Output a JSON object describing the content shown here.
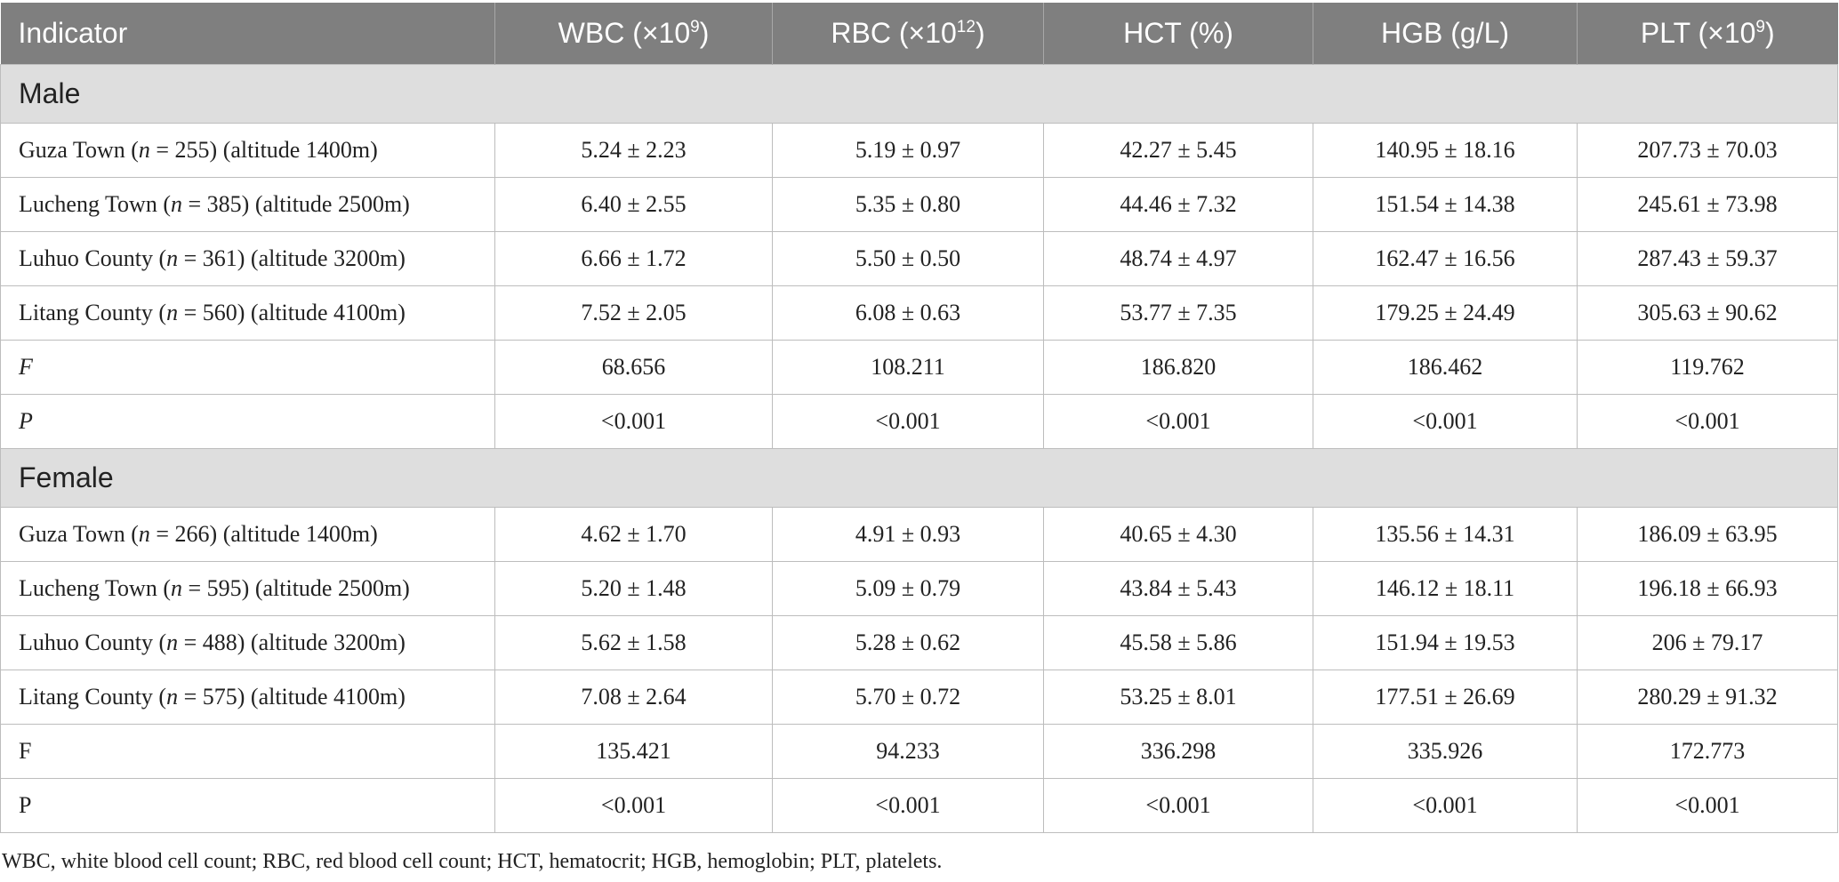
{
  "header": {
    "indicator": "Indicator",
    "wbc": {
      "text": "WBC (×10",
      "sup": "9",
      "close": ")"
    },
    "rbc": {
      "text": "RBC (×10",
      "sup": "12",
      "close": ")"
    },
    "hct": "HCT (%)",
    "hgb": "HGB (g/L)",
    "plt": {
      "text": "PLT (×10",
      "sup": "9",
      "close": ")"
    }
  },
  "male": {
    "label": "Male",
    "rows": [
      {
        "place": "Guza Town (",
        "n_sym": "n",
        "n_rest": " = 255) (altitude 1400m)",
        "wbc": "5.24 ± 2.23",
        "rbc": "5.19 ± 0.97",
        "hct": "42.27 ± 5.45",
        "hgb": "140.95 ± 18.16",
        "plt": "207.73 ± 70.03"
      },
      {
        "place": "Lucheng Town (",
        "n_sym": "n",
        "n_rest": " = 385) (altitude 2500m)",
        "wbc": "6.40 ± 2.55",
        "rbc": "5.35 ± 0.80",
        "hct": "44.46 ± 7.32",
        "hgb": "151.54 ± 14.38",
        "plt": "245.61 ± 73.98"
      },
      {
        "place": "Luhuo County (",
        "n_sym": "n",
        "n_rest": " = 361) (altitude 3200m)",
        "wbc": "6.66 ± 1.72",
        "rbc": "5.50 ± 0.50",
        "hct": "48.74 ± 4.97",
        "hgb": "162.47 ± 16.56",
        "plt": "287.43 ± 59.37"
      },
      {
        "place": "Litang County (",
        "n_sym": "n",
        "n_rest": " = 560) (altitude 4100m)",
        "wbc": "7.52 ± 2.05",
        "rbc": "6.08 ± 0.63",
        "hct": "53.77 ± 7.35",
        "hgb": "179.25 ± 24.49",
        "plt": "305.63 ± 90.62"
      }
    ],
    "f": {
      "label": "F",
      "wbc": "68.656",
      "rbc": "108.211",
      "hct": "186.820",
      "hgb": "186.462",
      "plt": "119.762"
    },
    "p": {
      "label": "P",
      "wbc": "<0.001",
      "rbc": "<0.001",
      "hct": "<0.001",
      "hgb": "<0.001",
      "plt": "<0.001"
    }
  },
  "female": {
    "label": "Female",
    "rows": [
      {
        "place": "Guza Town (",
        "n_sym": "n",
        "n_rest": " = 266) (altitude 1400m)",
        "wbc": "4.62 ± 1.70",
        "rbc": "4.91 ± 0.93",
        "hct": "40.65 ± 4.30",
        "hgb": "135.56 ± 14.31",
        "plt": "186.09 ± 63.95"
      },
      {
        "place": "Lucheng Town (",
        "n_sym": "n",
        "n_rest": " = 595) (altitude 2500m)",
        "wbc": "5.20 ± 1.48",
        "rbc": "5.09 ± 0.79",
        "hct": "43.84 ± 5.43",
        "hgb": "146.12 ± 18.11",
        "plt": "196.18 ± 66.93"
      },
      {
        "place": "Luhuo County (",
        "n_sym": "n",
        "n_rest": " = 488) (altitude 3200m)",
        "wbc": "5.62 ± 1.58",
        "rbc": "5.28 ± 0.62",
        "hct": "45.58 ± 5.86",
        "hgb": "151.94 ± 19.53",
        "plt": "206 ± 79.17"
      },
      {
        "place": "Litang County (",
        "n_sym": "n",
        "n_rest": " = 575) (altitude 4100m)",
        "wbc": "7.08 ± 2.64",
        "rbc": "5.70 ± 0.72",
        "hct": "53.25 ± 8.01",
        "hgb": "177.51 ± 26.69",
        "plt": "280.29 ± 91.32"
      }
    ],
    "f": {
      "label": "F",
      "wbc": "135.421",
      "rbc": "94.233",
      "hct": "336.298",
      "hgb": "335.926",
      "plt": "172.773"
    },
    "p": {
      "label": "P",
      "wbc": "<0.001",
      "rbc": "<0.001",
      "hct": "<0.001",
      "hgb": "<0.001",
      "plt": "<0.001"
    }
  },
  "footnote": "WBC, white blood cell count; RBC, red blood cell count; HCT, hematocrit; HGB, hemoglobin; PLT, platelets."
}
